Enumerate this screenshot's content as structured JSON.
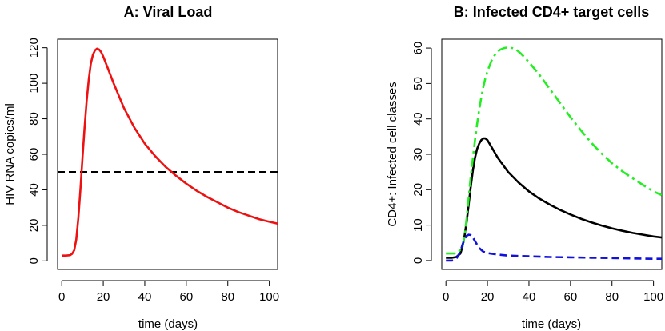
{
  "chart_data": [
    {
      "type": "line",
      "title": "A: Viral Load",
      "xlabel": "time (days)",
      "ylabel": "HIV RNA copies/ml",
      "xlim": [
        -2,
        104
      ],
      "ylim": [
        -4.8,
        124.8
      ],
      "xticks": [
        0,
        20,
        40,
        60,
        80,
        100
      ],
      "yticks": [
        0,
        20,
        40,
        60,
        80,
        100,
        120
      ],
      "grid": false,
      "legend": "none",
      "hlines": [
        {
          "y": 50,
          "color": "#000000",
          "style": "dashed"
        }
      ],
      "series": [
        {
          "color": "#ee1111",
          "style": "solid",
          "points": [
            [
              0,
              3
            ],
            [
              2,
              3
            ],
            [
              4,
              3.2
            ],
            [
              5,
              4
            ],
            [
              6,
              6
            ],
            [
              7,
              12
            ],
            [
              8,
              24
            ],
            [
              9,
              40
            ],
            [
              10,
              58
            ],
            [
              11,
              75
            ],
            [
              12,
              90
            ],
            [
              13,
              102
            ],
            [
              14,
              111
            ],
            [
              15,
              116
            ],
            [
              16,
              118.5
            ],
            [
              17,
              119.5
            ],
            [
              18,
              119
            ],
            [
              19,
              117.5
            ],
            [
              20,
              115
            ],
            [
              22,
              109
            ],
            [
              25,
              100
            ],
            [
              30,
              86
            ],
            [
              35,
              75
            ],
            [
              40,
              66
            ],
            [
              45,
              59
            ],
            [
              50,
              53
            ],
            [
              55,
              48
            ],
            [
              60,
              43.5
            ],
            [
              65,
              39.5
            ],
            [
              70,
              36
            ],
            [
              75,
              33
            ],
            [
              80,
              30
            ],
            [
              85,
              27.5
            ],
            [
              90,
              25.5
            ],
            [
              95,
              23.5
            ],
            [
              100,
              22
            ],
            [
              104,
              21
            ]
          ]
        }
      ]
    },
    {
      "type": "line",
      "title": "B: Infected CD4+ target cells",
      "xlabel": "time (days)",
      "ylabel": "CD4+: Infected cell classes",
      "xlim": [
        -2,
        104
      ],
      "ylim": [
        -2.5,
        62.5
      ],
      "xticks": [
        0,
        20,
        40,
        60,
        80,
        100
      ],
      "yticks": [
        0,
        10,
        20,
        30,
        40,
        50,
        60
      ],
      "grid": false,
      "legend": "none",
      "series": [
        {
          "color": "#000000",
          "style": "solid",
          "points": [
            [
              0,
              0.8
            ],
            [
              3,
              0.8
            ],
            [
              5,
              1
            ],
            [
              7,
              2
            ],
            [
              8,
              4
            ],
            [
              9,
              7
            ],
            [
              10,
              11
            ],
            [
              11,
              16
            ],
            [
              12,
              21
            ],
            [
              13,
              25.5
            ],
            [
              14,
              29
            ],
            [
              15,
              31.5
            ],
            [
              16,
              33
            ],
            [
              17,
              34
            ],
            [
              18,
              34.5
            ],
            [
              19,
              34.5
            ],
            [
              20,
              34
            ],
            [
              22,
              32
            ],
            [
              25,
              29
            ],
            [
              30,
              25
            ],
            [
              35,
              22
            ],
            [
              40,
              19.5
            ],
            [
              45,
              17.5
            ],
            [
              50,
              15.8
            ],
            [
              55,
              14.3
            ],
            [
              60,
              13
            ],
            [
              65,
              11.8
            ],
            [
              70,
              10.8
            ],
            [
              75,
              9.9
            ],
            [
              80,
              9.1
            ],
            [
              85,
              8.4
            ],
            [
              90,
              7.8
            ],
            [
              95,
              7.3
            ],
            [
              100,
              6.8
            ],
            [
              104,
              6.5
            ]
          ]
        },
        {
          "color": "#22ee22",
          "style": "dashdot",
          "points": [
            [
              0,
              2
            ],
            [
              4,
              2
            ],
            [
              6,
              2.3
            ],
            [
              8,
              4
            ],
            [
              9,
              7
            ],
            [
              10,
              12
            ],
            [
              11,
              18
            ],
            [
              12,
              24
            ],
            [
              13,
              29
            ],
            [
              14,
              34
            ],
            [
              15,
              38.5
            ],
            [
              16,
              42.5
            ],
            [
              17,
              46
            ],
            [
              18,
              49
            ],
            [
              19,
              51.5
            ],
            [
              20,
              53.5
            ],
            [
              22,
              56.5
            ],
            [
              24,
              58.5
            ],
            [
              26,
              59.5
            ],
            [
              28,
              60
            ],
            [
              30,
              60.2
            ],
            [
              32,
              60
            ],
            [
              34,
              59.5
            ],
            [
              36,
              58.5
            ],
            [
              38,
              57.3
            ],
            [
              40,
              56
            ],
            [
              45,
              52.5
            ],
            [
              50,
              48.5
            ],
            [
              55,
              44.5
            ],
            [
              60,
              40.5
            ],
            [
              65,
              36.8
            ],
            [
              70,
              33.3
            ],
            [
              75,
              30.2
            ],
            [
              80,
              27.5
            ],
            [
              85,
              25.2
            ],
            [
              90,
              23.2
            ],
            [
              95,
              21.3
            ],
            [
              100,
              19.5
            ],
            [
              104,
              18.5
            ]
          ]
        },
        {
          "color": "#1111dd",
          "style": "dashed",
          "points": [
            [
              0,
              0
            ],
            [
              3,
              0
            ],
            [
              5,
              0.5
            ],
            [
              7,
              2.5
            ],
            [
              8,
              4.5
            ],
            [
              9,
              6
            ],
            [
              10,
              7
            ],
            [
              11,
              7.3
            ],
            [
              12,
              7.2
            ],
            [
              13,
              6.5
            ],
            [
              14,
              5.5
            ],
            [
              15,
              4.5
            ],
            [
              16,
              3.6
            ],
            [
              17,
              3
            ],
            [
              18,
              2.5
            ],
            [
              20,
              2.1
            ],
            [
              25,
              1.7
            ],
            [
              30,
              1.4
            ],
            [
              40,
              1.2
            ],
            [
              50,
              1
            ],
            [
              60,
              0.9
            ],
            [
              70,
              0.8
            ],
            [
              80,
              0.7
            ],
            [
              90,
              0.6
            ],
            [
              100,
              0.5
            ],
            [
              104,
              0.5
            ]
          ]
        }
      ]
    }
  ]
}
